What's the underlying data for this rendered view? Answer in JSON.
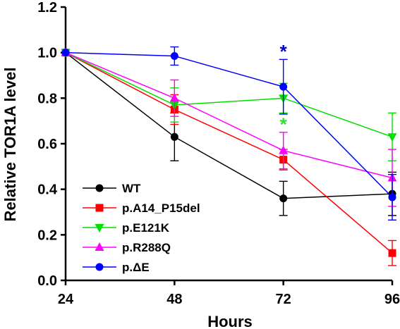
{
  "chart_data": {
    "type": "line",
    "xlabel": "Hours",
    "ylabel": "Relative TOR1A level",
    "x": [
      24,
      48,
      72,
      96
    ],
    "xlim": [
      24,
      96
    ],
    "ylim": [
      0.0,
      1.2
    ],
    "x_ticks": [
      "24",
      "48",
      "72",
      "96"
    ],
    "y_ticks": [
      "0.0",
      "0.2",
      "0.4",
      "0.6",
      "0.8",
      "1.0",
      "1.2"
    ],
    "legend_position": "bottom-left",
    "series": [
      {
        "name": "WT",
        "color": "#000000",
        "marker": "circle",
        "values": [
          1.0,
          0.63,
          0.36,
          0.38
        ],
        "errors": [
          0,
          0.105,
          0.075,
          0.095
        ]
      },
      {
        "name": "p.A14_P15del",
        "color": "#ff0000",
        "marker": "square",
        "values": [
          1.0,
          0.75,
          0.53,
          0.12
        ],
        "errors": [
          0,
          0.065,
          0.045,
          0.055
        ]
      },
      {
        "name": "p.E121K",
        "color": "#00e000",
        "marker": "triangle-down",
        "values": [
          1.0,
          0.77,
          0.8,
          0.63
        ],
        "errors": [
          0,
          0.075,
          0.065,
          0.105
        ]
      },
      {
        "name": "p.R288Q",
        "color": "#ff00ff",
        "marker": "triangle-up",
        "values": [
          1.0,
          0.8,
          0.57,
          0.45
        ],
        "errors": [
          0,
          0.08,
          0.08,
          0.125
        ]
      },
      {
        "name": "p.ΔE",
        "color": "#0000ff",
        "marker": "circle",
        "values": [
          1.0,
          0.985,
          0.85,
          0.365
        ],
        "errors": [
          0,
          0.04,
          0.12,
          0.1
        ]
      }
    ],
    "annotations": [
      {
        "text": "*",
        "x": 72,
        "y": 1.02,
        "color": "#0000cc"
      },
      {
        "text": "*",
        "x": 72,
        "y": 0.7,
        "color": "#33dd33"
      }
    ]
  }
}
